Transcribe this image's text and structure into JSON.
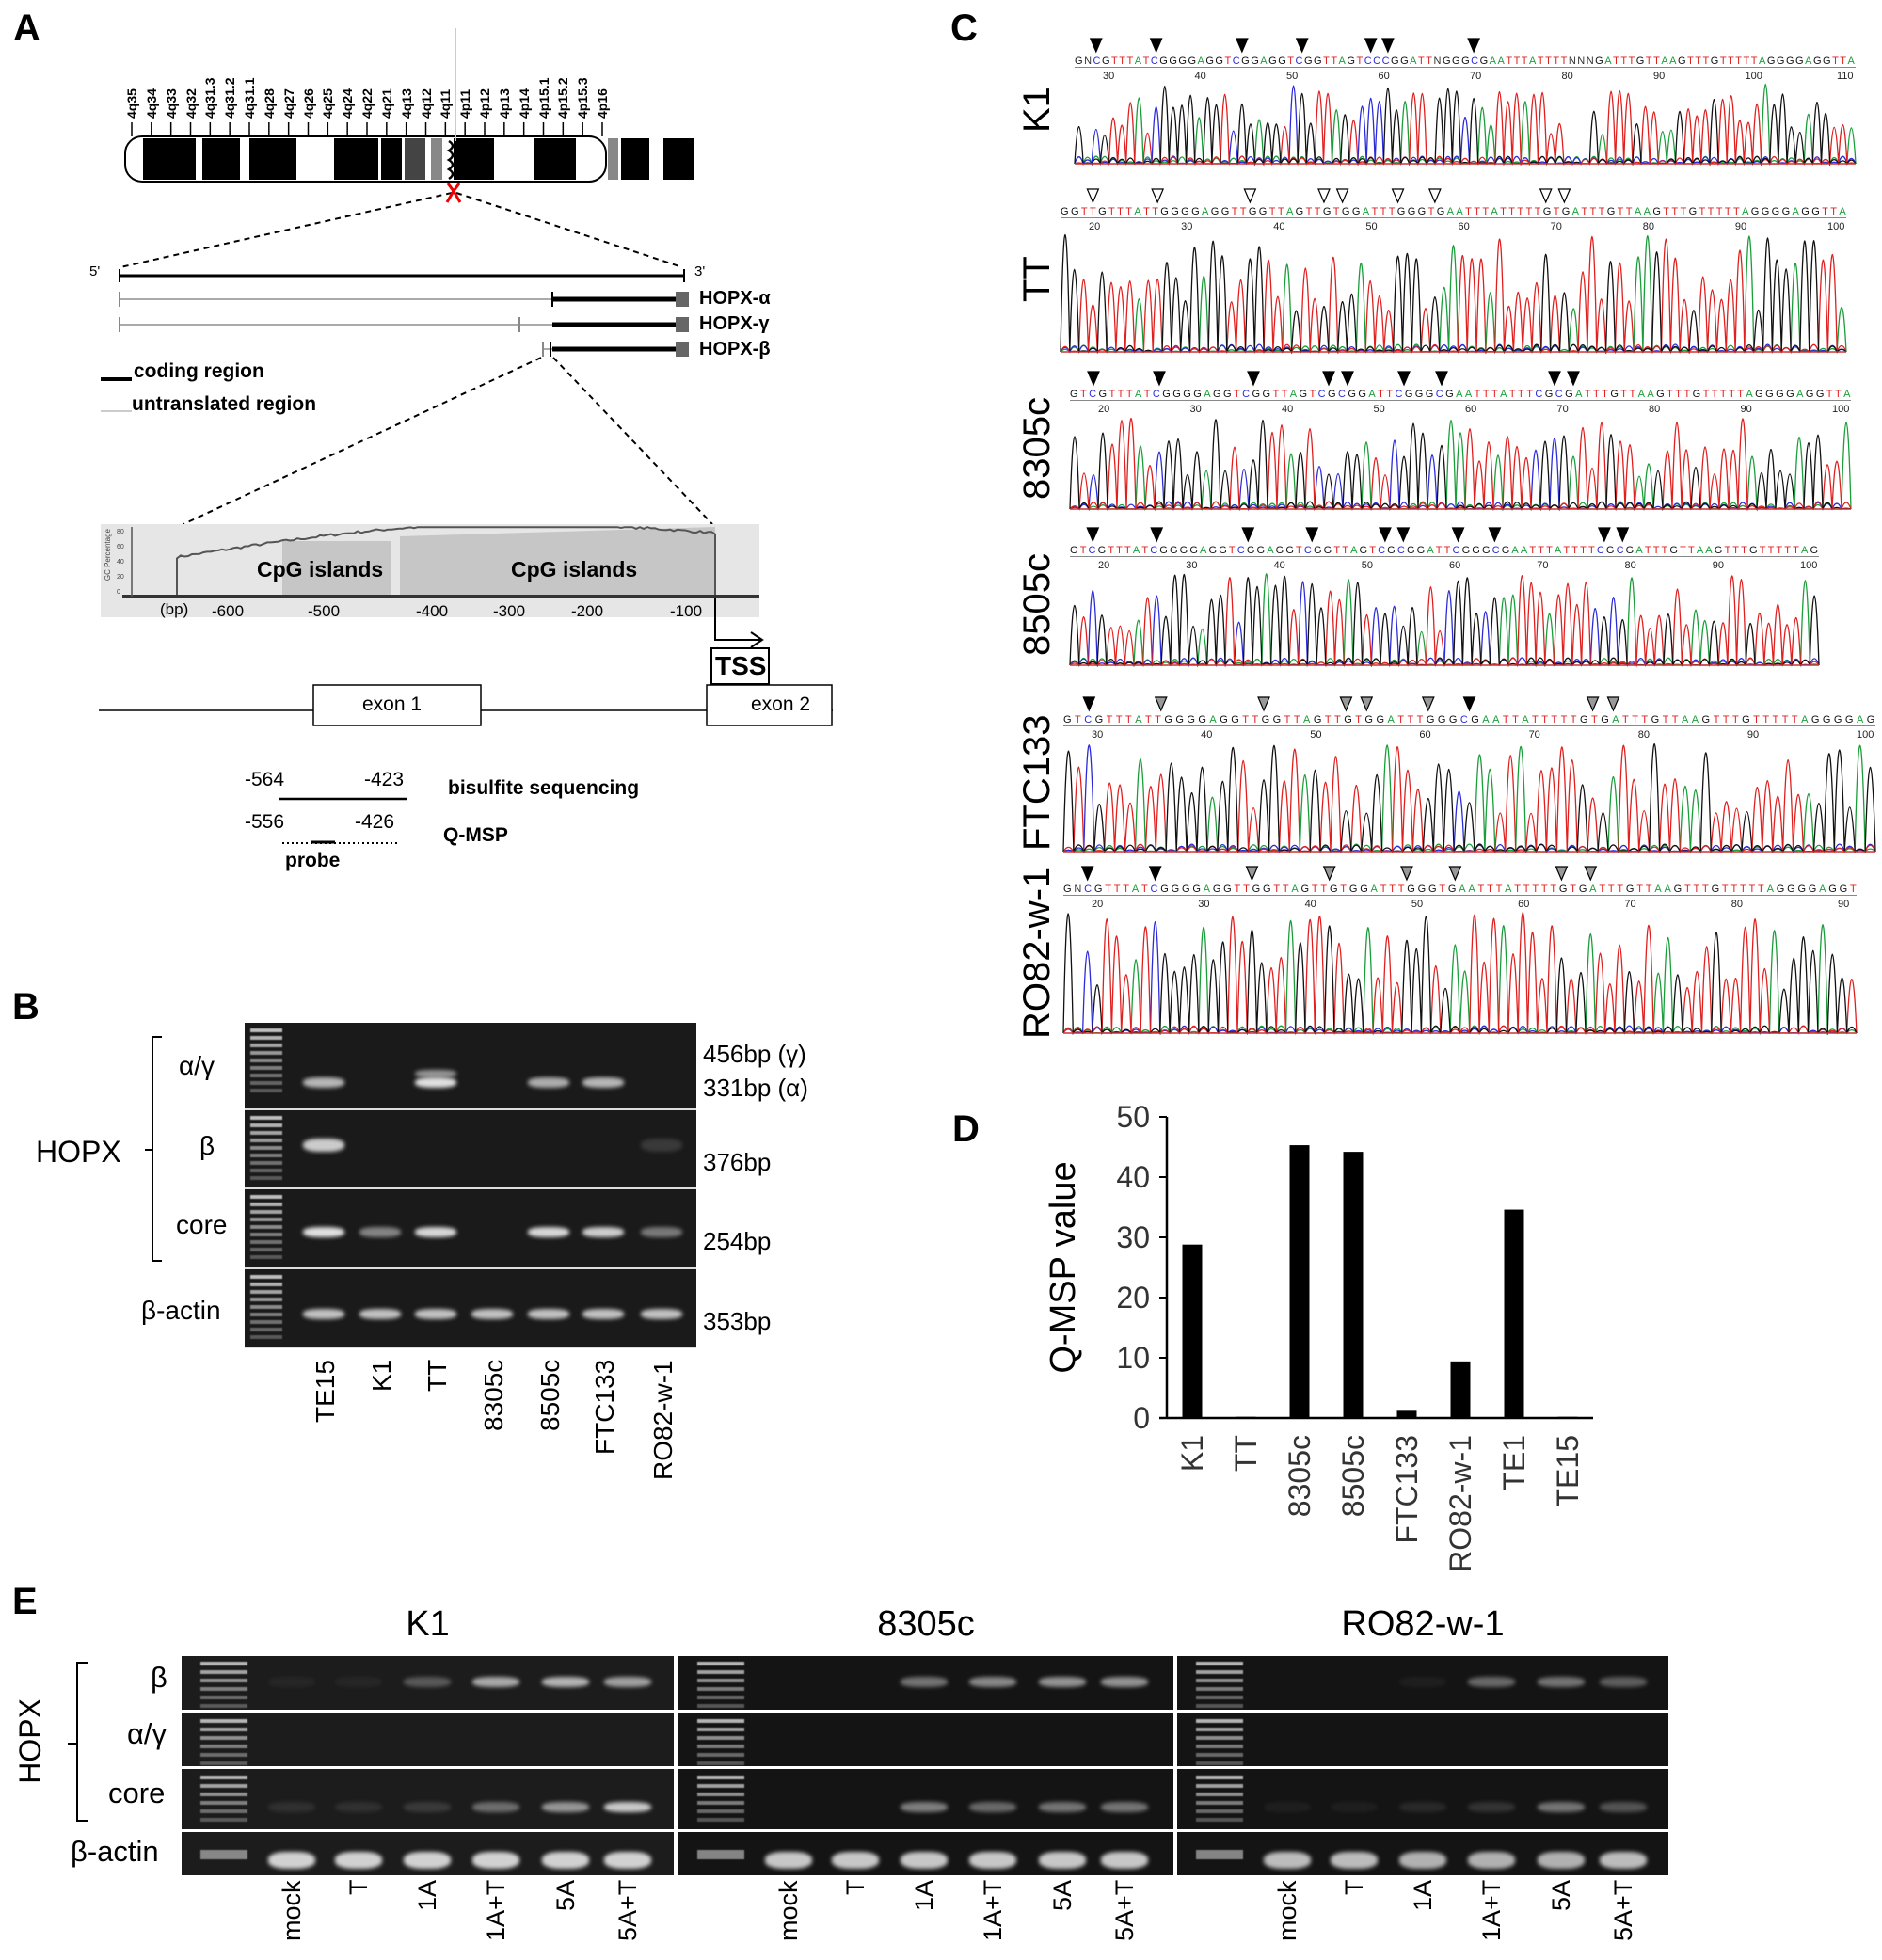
{
  "panels": {
    "A": "A",
    "B": "B",
    "C": "C",
    "D": "D",
    "E": "E"
  },
  "panel_a": {
    "chromosome_bands": [
      "4p16",
      "4p15.3",
      "4p15.2",
      "4p15.1",
      "4p14",
      "4p13",
      "4p12",
      "4p11",
      "4q11",
      "4q12",
      "4q13",
      "4q21",
      "4q22",
      "4q24",
      "4q25",
      "4q26",
      "4q27",
      "4q28",
      "4q31.1",
      "4q31.2",
      "4q31.3",
      "4q32",
      "4q33",
      "4q34",
      "4q35"
    ],
    "five_prime": "5'",
    "three_prime": "3'",
    "isoforms": [
      "HOPX-α",
      "HOPX-γ",
      "HOPX-β"
    ],
    "legend": {
      "coding": "coding region",
      "untranslated": "untranslated region"
    },
    "cpg_plot": {
      "ylabel": "GC Percentage",
      "yticks": [
        "0",
        "20",
        "40",
        "60",
        "80"
      ],
      "xunit": "(bp)",
      "xticks": [
        "-600",
        "-500",
        "-400",
        "-300",
        "-200",
        "-100"
      ],
      "islands": [
        "CpG islands",
        "CpG islands"
      ]
    },
    "tss": "TSS",
    "exon1": "exon 1",
    "exon2": "exon 2",
    "bisulfite": {
      "start": "-564",
      "end": "-423",
      "label": "bisulfite sequencing"
    },
    "qmsp": {
      "start": "-556",
      "end": "-426",
      "label": "Q-MSP",
      "probe": "probe"
    }
  },
  "panel_b": {
    "group_label": "HOPX",
    "rows": [
      {
        "label": "α/γ",
        "sizes": [
          "456bp (γ)",
          "331bp (α)"
        ],
        "bands": [
          0.75,
          0,
          0.95,
          0,
          0.7,
          0.75,
          0
        ]
      },
      {
        "label": "β",
        "sizes": [
          "376bp"
        ],
        "bands": [
          0.85,
          0,
          0,
          0,
          0,
          0,
          0.15
        ]
      },
      {
        "label": "core",
        "sizes": [
          "254bp"
        ],
        "bands": [
          0.95,
          0.5,
          0.9,
          0,
          0.9,
          0.85,
          0.45
        ]
      },
      {
        "label": "β-actin",
        "sizes": [
          "353bp"
        ],
        "bands": [
          0.8,
          0.8,
          0.8,
          0.8,
          0.8,
          0.8,
          0.8
        ]
      }
    ],
    "lanes": [
      "TE15",
      "K1",
      "TT",
      "8305c",
      "8505c",
      "FTC133",
      "RO82-w-1"
    ]
  },
  "panel_c": {
    "colors": {
      "A": "#1a9e3a",
      "C": "#2b2bd9",
      "G": "#111111",
      "T": "#e0201f"
    },
    "traces": [
      {
        "sample": "K1",
        "sequence": "GNCGTTTATCGGGGAGGTCGGAGGTCGGTTAGTCCCGGATTNGGGCGAATTTATTTTNNNGATTTGTTAAGTTTGTTTTTAGGGGAGGTTA",
        "ticks": [
          "30",
          "40",
          "50",
          "60",
          "70",
          "80",
          "90",
          "100",
          "110"
        ],
        "markers": [
          [
            2,
            "filled"
          ],
          [
            9,
            "filled"
          ],
          [
            19,
            "filled"
          ],
          [
            26,
            "filled"
          ],
          [
            34,
            "filled"
          ],
          [
            36,
            "filled"
          ],
          [
            46,
            "filled"
          ]
        ]
      },
      {
        "sample": "TT",
        "sequence": "GGTTGTTTATTGGGGAGGTTGGTTAGTTGTGGATTTGGGTGAATTTATTTTTGTGATTTGTTAAGTTTGTTTTTAGGGGAGGTTA",
        "ticks": [
          "20",
          "30",
          "40",
          "50",
          "60",
          "70",
          "80",
          "90",
          "100"
        ],
        "markers": [
          [
            3,
            "open"
          ],
          [
            10,
            "open"
          ],
          [
            20,
            "open"
          ],
          [
            28,
            "open"
          ],
          [
            30,
            "open"
          ],
          [
            36,
            "open"
          ],
          [
            40,
            "open"
          ],
          [
            52,
            "open"
          ],
          [
            54,
            "open"
          ]
        ]
      },
      {
        "sample": "8305c",
        "sequence": "GTCGTTTATCGGGGAGGTCGGTTAGTCGCGGATTCGGGCGAATTTATTTCGCGATTTGTTAAGTTTGTTTTTAGGGGAGGTTA",
        "ticks": [
          "20",
          "30",
          "40",
          "50",
          "60",
          "70",
          "80",
          "90",
          "100"
        ],
        "markers": [
          [
            2,
            "filled"
          ],
          [
            9,
            "filled"
          ],
          [
            19,
            "filled"
          ],
          [
            27,
            "filled"
          ],
          [
            29,
            "filled"
          ],
          [
            35,
            "filled"
          ],
          [
            39,
            "filled"
          ],
          [
            51,
            "filled"
          ],
          [
            53,
            "filled"
          ]
        ]
      },
      {
        "sample": "8505c",
        "sequence": "GTCGTTTATCGGGGAGGTCGGAGGTCGGTTAGTCGCGGATTCGGGCGAATTTATTTTCGCGATTTGTTAAGTTTGTTTTTAG",
        "ticks": [
          "20",
          "30",
          "40",
          "50",
          "60",
          "70",
          "80",
          "90",
          "100"
        ],
        "markers": [
          [
            2,
            "filled"
          ],
          [
            9,
            "filled"
          ],
          [
            19,
            "filled"
          ],
          [
            26,
            "filled"
          ],
          [
            34,
            "filled"
          ],
          [
            36,
            "filled"
          ],
          [
            42,
            "filled"
          ],
          [
            46,
            "filled"
          ],
          [
            58,
            "filled"
          ],
          [
            60,
            "filled"
          ]
        ]
      },
      {
        "sample": "FTC133",
        "sequence": "GTCGTTTATTGGGGAGGTTGGTTAGTTGTGGATTTGGGCGAATTATTTTTGTGATTTGTTAAGTTTGTTTTTAGGGGAG",
        "ticks": [
          "30",
          "40",
          "50",
          "60",
          "70",
          "80",
          "90",
          "100"
        ],
        "markers": [
          [
            2,
            "filled"
          ],
          [
            9,
            "hatched"
          ],
          [
            19,
            "hatched"
          ],
          [
            27,
            "hatched"
          ],
          [
            29,
            "hatched"
          ],
          [
            35,
            "hatched"
          ],
          [
            39,
            "filled"
          ],
          [
            51,
            "hatched"
          ],
          [
            53,
            "hatched"
          ]
        ]
      },
      {
        "sample": "RO82-w-1",
        "sequence": "GNCGTTTATCGGGGAGGTTGGTTAGTTGTGGATTTGGGTGAATTTATTTTTGTGATTTGTTAAGTTTGTTTTTAGGGGAGGT",
        "ticks": [
          "20",
          "30",
          "40",
          "50",
          "60",
          "70",
          "80",
          "90"
        ],
        "markers": [
          [
            2,
            "filled"
          ],
          [
            9,
            "filled"
          ],
          [
            19,
            "hatched"
          ],
          [
            27,
            "hatched"
          ],
          [
            35,
            "hatched"
          ],
          [
            40,
            "hatched"
          ],
          [
            51,
            "hatched"
          ],
          [
            54,
            "hatched"
          ]
        ]
      }
    ]
  },
  "chart_data": {
    "type": "bar",
    "categories": [
      "K1",
      "TT",
      "8305c",
      "8505c",
      "FTC133",
      "RO82-w-1",
      "TE1",
      "TE15"
    ],
    "values": [
      28.8,
      0.2,
      45.3,
      44.2,
      1.2,
      9.4,
      34.6,
      0.2
    ],
    "title": "",
    "xlabel": "",
    "ylabel": "Q-MSP value",
    "ylim": [
      0,
      50
    ],
    "yticks": [
      0,
      10,
      20,
      30,
      40,
      50
    ],
    "grid": false,
    "bar_color": "#000000"
  },
  "panel_e": {
    "group_label": "HOPX",
    "row_labels": [
      "β",
      "α/γ",
      "core",
      "β-actin"
    ],
    "lanes": [
      "mock",
      "T",
      "1A",
      "1A+T",
      "5A",
      "5A+T"
    ],
    "gels": [
      {
        "title": "K1",
        "bands": [
          [
            0.05,
            0.05,
            0.3,
            0.7,
            0.75,
            0.65
          ],
          [
            0,
            0,
            0,
            0,
            0,
            0
          ],
          [
            0.1,
            0.1,
            0.15,
            0.4,
            0.6,
            0.85
          ],
          [
            0.9,
            0.9,
            0.9,
            0.9,
            0.9,
            0.9
          ]
        ]
      },
      {
        "title": "8305c",
        "bands": [
          [
            0,
            0,
            0.45,
            0.55,
            0.6,
            0.6
          ],
          [
            0,
            0,
            0,
            0,
            0,
            0
          ],
          [
            0,
            0,
            0.5,
            0.4,
            0.45,
            0.45
          ],
          [
            0.85,
            0.85,
            0.85,
            0.85,
            0.85,
            0.85
          ]
        ]
      },
      {
        "title": "RO82-w-1",
        "bands": [
          [
            0,
            0,
            0.05,
            0.4,
            0.45,
            0.35
          ],
          [
            0,
            0,
            0,
            0,
            0,
            0
          ],
          [
            0.05,
            0.05,
            0.1,
            0.15,
            0.45,
            0.3
          ],
          [
            0.8,
            0.8,
            0.75,
            0.75,
            0.75,
            0.8
          ]
        ]
      }
    ]
  }
}
